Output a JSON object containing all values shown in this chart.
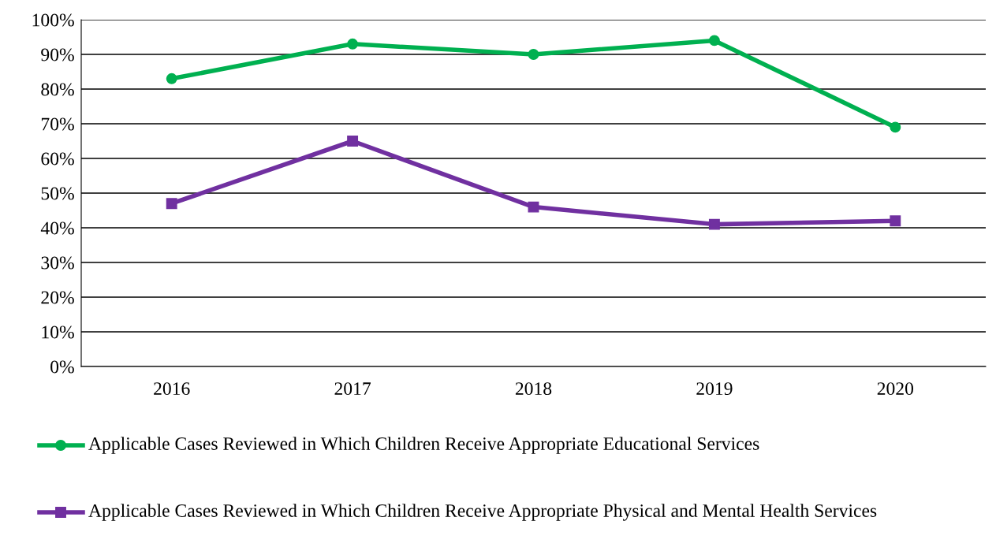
{
  "chart_data": {
    "type": "line",
    "categories": [
      "2016",
      "2017",
      "2018",
      "2019",
      "2020"
    ],
    "series": [
      {
        "name": "Applicable Cases Reviewed in Which Children Receive Appropriate Educational Services",
        "color": "#00b050",
        "marker": "circle",
        "values": [
          83,
          93,
          90,
          94,
          69
        ]
      },
      {
        "name": "Applicable Cases Reviewed in Which Children Receive Appropriate Physical and Mental Health Services",
        "color": "#7030a0",
        "marker": "square",
        "values": [
          47,
          65,
          46,
          41,
          42
        ]
      }
    ],
    "ylim": [
      0,
      100
    ],
    "yticks": [
      {
        "value": 0,
        "label": "0%"
      },
      {
        "value": 10,
        "label": "10%"
      },
      {
        "value": 20,
        "label": "20%"
      },
      {
        "value": 30,
        "label": "30%"
      },
      {
        "value": 40,
        "label": "40%"
      },
      {
        "value": 50,
        "label": "50%"
      },
      {
        "value": 60,
        "label": "60%"
      },
      {
        "value": 70,
        "label": "70%"
      },
      {
        "value": 80,
        "label": "80%"
      },
      {
        "value": 90,
        "label": "90%"
      },
      {
        "value": 100,
        "label": "100%"
      }
    ],
    "grid": "y",
    "legend": "bottom"
  }
}
